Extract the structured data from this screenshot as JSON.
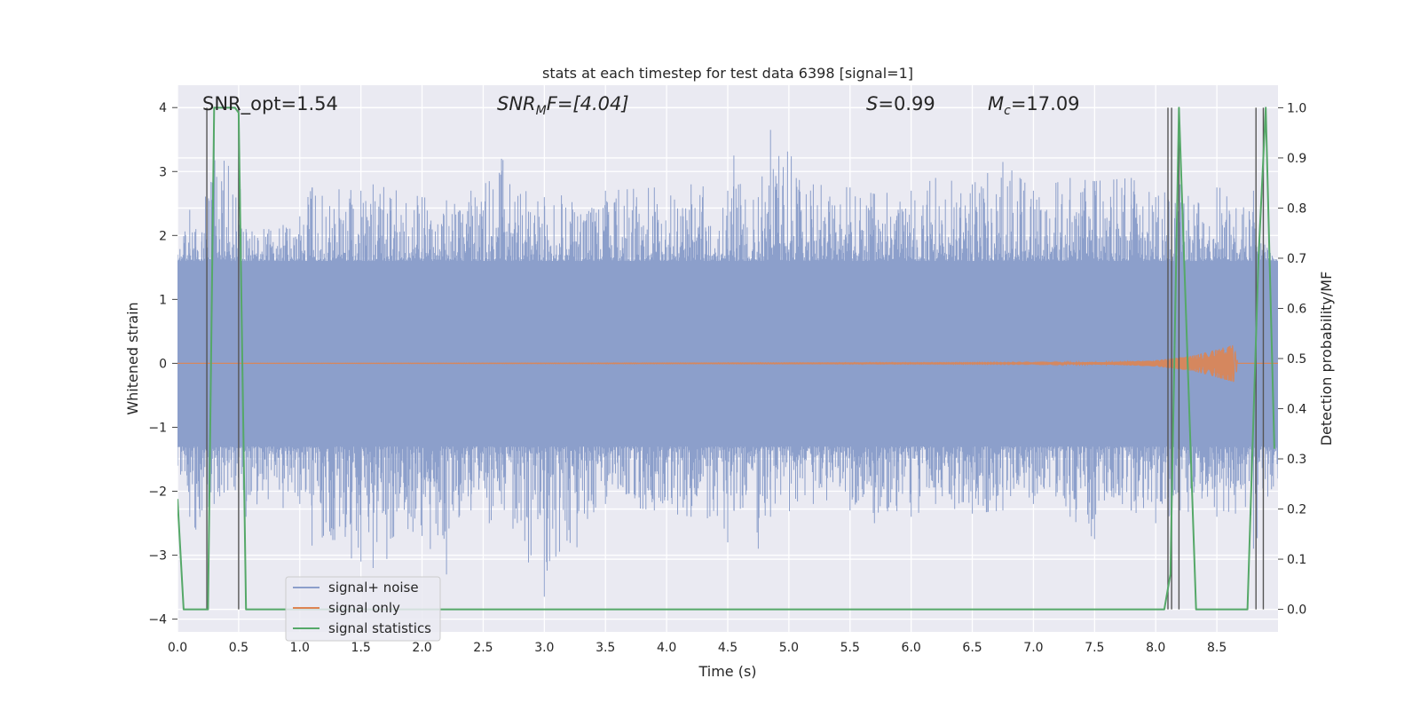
{
  "chart_data": {
    "type": "line",
    "title": "stats at each timestep for test data 6398 [signal=1]",
    "xlabel": "Time (s)",
    "ylabel": "Whitened strain",
    "y2label": "Detection probability/MF",
    "xlim": [
      0,
      9.0
    ],
    "ylim": [
      -4.2,
      4.35
    ],
    "y2lim": [
      -0.045,
      1.045
    ],
    "grid": true,
    "legend_position": "lower-left",
    "x_ticks": [
      0.0,
      0.5,
      1.0,
      1.5,
      2.0,
      2.5,
      3.0,
      3.5,
      4.0,
      4.5,
      5.0,
      5.5,
      6.0,
      6.5,
      7.0,
      7.5,
      8.0,
      8.5
    ],
    "x_tick_labels": [
      "0.0",
      "0.5",
      "1.0",
      "1.5",
      "2.0",
      "2.5",
      "3.0",
      "3.5",
      "4.0",
      "4.5",
      "5.0",
      "5.5",
      "6.0",
      "6.5",
      "7.0",
      "7.5",
      "8.0",
      "8.5"
    ],
    "y_ticks": [
      4,
      3,
      2,
      1,
      0,
      -1,
      -2,
      -3,
      -4
    ],
    "y_tick_labels": [
      "4",
      "3",
      "2",
      "1",
      "0",
      "−1",
      "−2",
      "−3",
      "−4"
    ],
    "y2_ticks": [
      1.0,
      0.9,
      0.8,
      0.7,
      0.6,
      0.5,
      0.4,
      0.3,
      0.2,
      0.1,
      0.0
    ],
    "y2_tick_labels": [
      "1.0",
      "0.9",
      "0.8",
      "0.7",
      "0.6",
      "0.5",
      "0.4",
      "0.3",
      "0.2",
      "0.1",
      "0.0"
    ],
    "annotations": {
      "snr_opt": "SNR_opt=1.54",
      "snr_mf_base": "SNR",
      "snr_mf_sub": "M",
      "snr_mf_rest": "F=[4.04]",
      "s_sym": "S",
      "s_val": "=0.99",
      "mc_base": "M",
      "mc_sub": "c",
      "mc_val": "=17.09"
    },
    "series": [
      {
        "name": "signal+ noise",
        "color": "#8c9fcb",
        "axis": "left",
        "typical_envelope": [
          -1.3,
          1.6
        ],
        "x": [
          0.0,
          0.1,
          0.15,
          0.2,
          0.3,
          0.5,
          0.56,
          1.0,
          1.1,
          1.5,
          1.6,
          2.0,
          2.2,
          2.4,
          2.55,
          2.65,
          3.0,
          3.5,
          3.9,
          4.2,
          4.5,
          4.55,
          4.75,
          4.85,
          5.2,
          5.5,
          5.7,
          6.0,
          6.2,
          6.5,
          6.75,
          7.0,
          7.3,
          7.5,
          7.8,
          8.0,
          8.2,
          8.5,
          8.8,
          9.0
        ],
        "upper": [
          1.7,
          2.4,
          2.1,
          2.05,
          4.0,
          2.9,
          2.1,
          2.3,
          2.75,
          2.7,
          2.8,
          2.6,
          2.55,
          2.7,
          2.85,
          3.2,
          2.6,
          2.7,
          2.75,
          2.8,
          2.7,
          3.25,
          2.6,
          3.65,
          2.8,
          2.75,
          2.65,
          2.7,
          2.9,
          2.8,
          3.15,
          2.7,
          2.9,
          2.85,
          2.9,
          2.6,
          2.8,
          2.75,
          2.7,
          1.6
        ],
        "lower": [
          -1.6,
          -2.4,
          -2.6,
          -2.3,
          -2.2,
          -2.1,
          -2.4,
          -2.2,
          -2.85,
          -3.1,
          -3.2,
          -2.7,
          -3.3,
          -2.3,
          -2.5,
          -2.2,
          -3.65,
          -2.2,
          -2.3,
          -2.4,
          -2.8,
          -2.3,
          -2.9,
          -2.4,
          -2.2,
          -2.3,
          -2.5,
          -2.4,
          -2.2,
          -2.35,
          -2.3,
          -2.2,
          -2.4,
          -2.75,
          -2.3,
          -2.5,
          -2.3,
          -2.4,
          -2.9,
          -1.8
        ]
      },
      {
        "name": "signal only",
        "color": "#dd8452",
        "axis": "left",
        "x": [
          0.0,
          7.0,
          7.6,
          8.0,
          8.3,
          8.5,
          8.65,
          8.67
        ],
        "amplitude": [
          0.0,
          0.01,
          0.02,
          0.05,
          0.12,
          0.22,
          0.3,
          0.0
        ]
      },
      {
        "name": "signal statistics",
        "color": "#55a868",
        "axis": "right",
        "x": [
          0.0,
          0.05,
          0.25,
          0.3,
          0.47,
          0.5,
          0.56,
          3.5,
          8.07,
          8.12,
          8.19,
          8.33,
          8.75,
          8.84,
          8.9,
          8.97
        ],
        "y": [
          0.22,
          0.0,
          0.0,
          1.0,
          1.0,
          0.99,
          0.0,
          0.0,
          0.0,
          0.07,
          1.0,
          0.0,
          0.0,
          0.7,
          1.0,
          0.32
        ]
      }
    ],
    "vertical_lines": {
      "color": "#555555",
      "x": [
        0.24,
        0.5,
        8.1,
        8.13,
        8.19,
        8.82,
        8.88
      ]
    }
  }
}
